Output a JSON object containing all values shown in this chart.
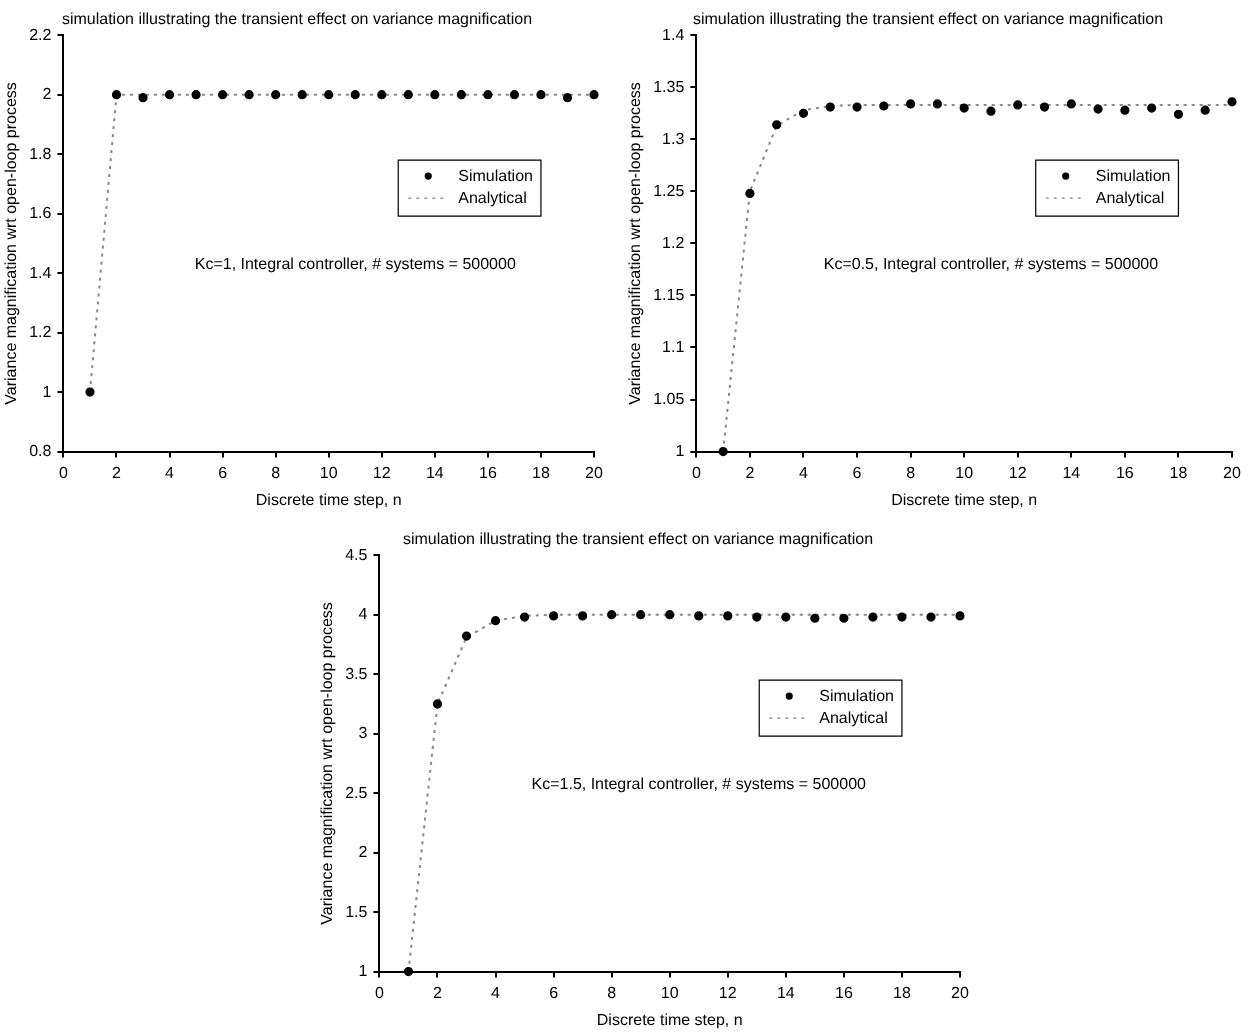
{
  "chart_data": [
    {
      "type": "line",
      "title": "simulation illustrating the transient effect on variance magnification",
      "xlabel": "Discrete time step, n",
      "ylabel": "Variance magnification wrt open-loop process",
      "x": [
        1,
        2,
        3,
        4,
        5,
        6,
        7,
        8,
        9,
        10,
        11,
        12,
        13,
        14,
        15,
        16,
        17,
        18,
        19,
        20
      ],
      "xlim": [
        0,
        20
      ],
      "xticks": [
        0,
        2,
        4,
        6,
        8,
        10,
        12,
        14,
        16,
        18,
        20
      ],
      "ylim": [
        0.8,
        2.2
      ],
      "yticks": [
        0.8,
        1,
        1.2,
        1.4,
        1.6,
        1.8,
        2,
        2.2
      ],
      "grid": false,
      "legend": "right",
      "annotations": [
        "Kc=1, Integral controller, # systems = 500000"
      ],
      "series": [
        {
          "name": "Simulation",
          "type": "scatter",
          "marker": "circle",
          "color": "#000000",
          "values": [
            1,
            2,
            1.99,
            2,
            2,
            2,
            2,
            2,
            2,
            2,
            2,
            2,
            2,
            2,
            2,
            2,
            2,
            2,
            1.99,
            2
          ]
        },
        {
          "name": "Analytical",
          "type": "line",
          "marker": "none",
          "line_style": "dotted",
          "color": "#888888",
          "values": [
            1,
            2,
            2,
            2,
            2,
            2,
            2,
            2,
            2,
            2,
            2,
            2,
            2,
            2,
            2,
            2,
            2,
            2,
            2,
            2
          ]
        }
      ]
    },
    {
      "type": "line",
      "title": "simulation illustrating the transient effect on variance magnification",
      "xlabel": "Discrete time step, n",
      "ylabel": "Variance magnification wrt open-loop process",
      "x": [
        1,
        2,
        3,
        4,
        5,
        6,
        7,
        8,
        9,
        10,
        11,
        12,
        13,
        14,
        15,
        16,
        17,
        18,
        19,
        20
      ],
      "xlim": [
        0,
        20
      ],
      "xticks": [
        0,
        2,
        4,
        6,
        8,
        10,
        12,
        14,
        16,
        18,
        20
      ],
      "ylim": [
        1,
        1.4
      ],
      "yticks": [
        1,
        1.05,
        1.1,
        1.15,
        1.2,
        1.25,
        1.3,
        1.35,
        1.4
      ],
      "grid": false,
      "legend": "right",
      "annotations": [
        "Kc=0.5, Integral controller, # systems = 500000"
      ],
      "series": [
        {
          "name": "Simulation",
          "type": "scatter",
          "marker": "circle",
          "color": "#000000",
          "values": [
            1,
            1.248,
            1.314,
            1.325,
            1.331,
            1.331,
            1.332,
            1.334,
            1.334,
            1.33,
            1.327,
            1.333,
            1.331,
            1.334,
            1.329,
            1.328,
            1.33,
            1.324,
            1.328,
            1.336
          ]
        },
        {
          "name": "Analytical",
          "type": "line",
          "marker": "none",
          "line_style": "dotted",
          "color": "#888888",
          "values": [
            1,
            1.25,
            1.313,
            1.328,
            1.332,
            1.333,
            1.333,
            1.333,
            1.333,
            1.333,
            1.333,
            1.333,
            1.333,
            1.333,
            1.333,
            1.333,
            1.333,
            1.333,
            1.333,
            1.333
          ]
        }
      ]
    },
    {
      "type": "line",
      "title": "simulation illustrating the transient effect on variance magnification",
      "xlabel": "Discrete time step, n",
      "ylabel": "Variance magnification wrt open-loop process",
      "x": [
        1,
        2,
        3,
        4,
        5,
        6,
        7,
        8,
        9,
        10,
        11,
        12,
        13,
        14,
        15,
        16,
        17,
        18,
        19,
        20
      ],
      "xlim": [
        0,
        20
      ],
      "xticks": [
        0,
        2,
        4,
        6,
        8,
        10,
        12,
        14,
        16,
        18,
        20
      ],
      "ylim": [
        1,
        4.5
      ],
      "yticks": [
        1,
        1.5,
        2,
        2.5,
        3,
        3.5,
        4,
        4.5
      ],
      "grid": false,
      "legend": "right",
      "annotations": [
        "Kc=1.5, Integral controller, # systems = 500000"
      ],
      "series": [
        {
          "name": "Simulation",
          "type": "scatter",
          "marker": "circle",
          "color": "#000000",
          "values": [
            1,
            3.25,
            3.82,
            3.95,
            3.98,
            3.99,
            3.99,
            4,
            4,
            4,
            3.99,
            3.99,
            3.98,
            3.98,
            3.97,
            3.97,
            3.98,
            3.98,
            3.98,
            3.99
          ]
        },
        {
          "name": "Analytical",
          "type": "line",
          "marker": "none",
          "line_style": "dotted",
          "color": "#888888",
          "values": [
            1,
            3.25,
            3.81,
            3.95,
            3.99,
            4,
            4,
            4,
            4,
            4,
            4,
            4,
            4,
            4,
            4,
            4,
            4,
            4,
            4,
            4
          ]
        }
      ]
    }
  ]
}
